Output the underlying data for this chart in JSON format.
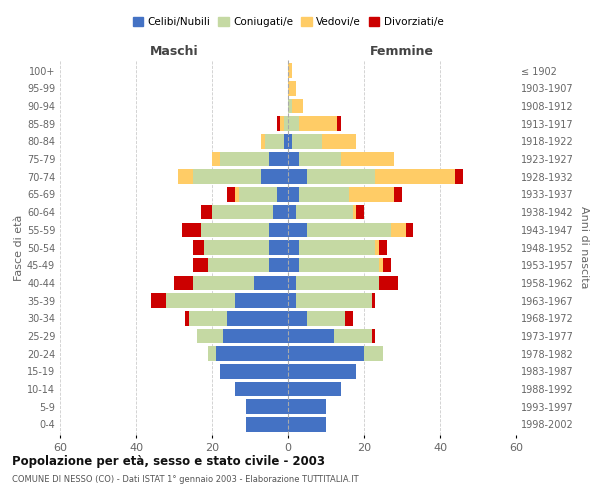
{
  "age_groups": [
    "0-4",
    "5-9",
    "10-14",
    "15-19",
    "20-24",
    "25-29",
    "30-34",
    "35-39",
    "40-44",
    "45-49",
    "50-54",
    "55-59",
    "60-64",
    "65-69",
    "70-74",
    "75-79",
    "80-84",
    "85-89",
    "90-94",
    "95-99",
    "100+"
  ],
  "birth_years": [
    "1998-2002",
    "1993-1997",
    "1988-1992",
    "1983-1987",
    "1978-1982",
    "1973-1977",
    "1968-1972",
    "1963-1967",
    "1958-1962",
    "1953-1957",
    "1948-1952",
    "1943-1947",
    "1938-1942",
    "1933-1937",
    "1928-1932",
    "1923-1927",
    "1918-1922",
    "1913-1917",
    "1908-1912",
    "1903-1907",
    "≤ 1902"
  ],
  "males": {
    "celibe": [
      11,
      11,
      14,
      18,
      19,
      17,
      16,
      14,
      9,
      5,
      5,
      5,
      4,
      3,
      7,
      5,
      1,
      0,
      0,
      0,
      0
    ],
    "coniugato": [
      0,
      0,
      0,
      0,
      2,
      7,
      10,
      18,
      16,
      16,
      17,
      18,
      16,
      10,
      18,
      13,
      5,
      1,
      0,
      0,
      0
    ],
    "vedovo": [
      0,
      0,
      0,
      0,
      0,
      0,
      0,
      0,
      0,
      0,
      0,
      0,
      0,
      1,
      4,
      2,
      1,
      1,
      0,
      0,
      0
    ],
    "divorziato": [
      0,
      0,
      0,
      0,
      0,
      0,
      1,
      4,
      5,
      4,
      3,
      5,
      3,
      2,
      0,
      0,
      0,
      1,
      0,
      0,
      0
    ]
  },
  "females": {
    "nubile": [
      10,
      10,
      14,
      18,
      20,
      12,
      5,
      2,
      2,
      3,
      3,
      5,
      2,
      3,
      5,
      3,
      1,
      0,
      0,
      0,
      0
    ],
    "coniugata": [
      0,
      0,
      0,
      0,
      5,
      10,
      10,
      20,
      22,
      21,
      20,
      22,
      15,
      13,
      18,
      11,
      8,
      3,
      1,
      0,
      0
    ],
    "vedova": [
      0,
      0,
      0,
      0,
      0,
      0,
      0,
      0,
      0,
      1,
      1,
      4,
      1,
      12,
      21,
      14,
      9,
      10,
      3,
      2,
      1
    ],
    "divorziata": [
      0,
      0,
      0,
      0,
      0,
      1,
      2,
      1,
      5,
      2,
      2,
      2,
      2,
      2,
      2,
      0,
      0,
      1,
      0,
      0,
      0
    ]
  },
  "colors": {
    "celibe": "#4472C4",
    "coniugato": "#C5D9A3",
    "vedovo": "#FFCC66",
    "divorziato": "#CC0000"
  },
  "xlim": 60,
  "title": "Popolazione per età, sesso e stato civile - 2003",
  "subtitle": "COMUNE DI NESSO (CO) - Dati ISTAT 1° gennaio 2003 - Elaborazione TUTTITALIA.IT",
  "ylabel_left": "Fasce di età",
  "ylabel_right": "Anni di nascita",
  "xlabel_left": "Maschi",
  "xlabel_right": "Femmine",
  "background_color": "#FFFFFF",
  "grid_color": "#CCCCCC",
  "legend_labels": [
    "Celibi/Nubili",
    "Coniugati/e",
    "Vedovi/e",
    "Divorziati/e"
  ]
}
